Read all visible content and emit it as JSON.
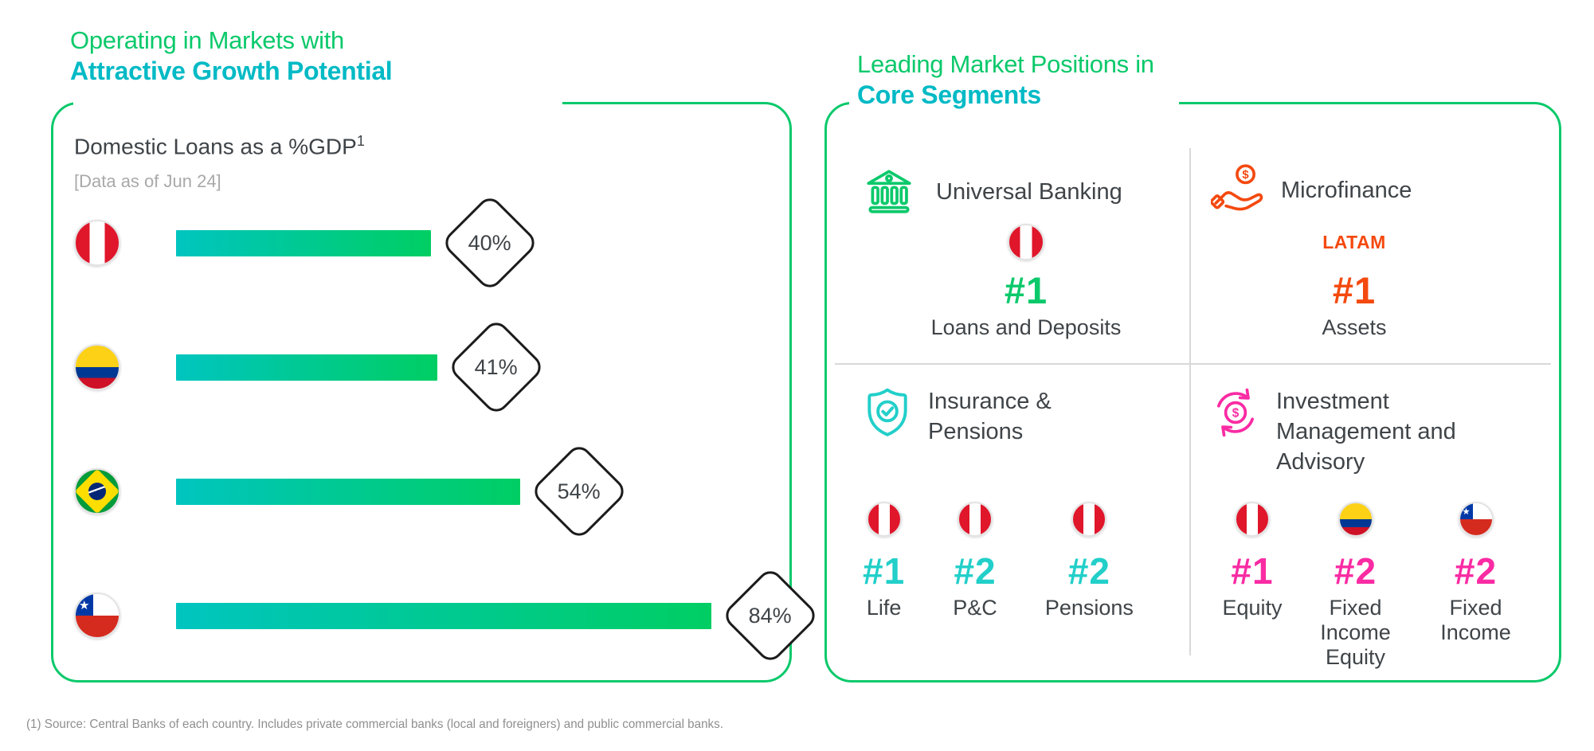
{
  "footnote": "(1) Source: Central Banks of each country. Includes private commercial banks (local and foreigners) and public commercial banks.",
  "colors": {
    "green": "#0BC96B",
    "teal": "#00BAC5",
    "turquoise": "#22CFC9",
    "orange": "#F4490F",
    "magenta": "#FA2BA3",
    "dark_text": "#3F4448",
    "note_gray": "#A9A9A9",
    "divider_gray": "#D9D9D9",
    "bar_gradient_start": "#00C5C0",
    "bar_gradient_end": "#00CE63"
  },
  "left_panel": {
    "title_line1": "Operating in Markets with",
    "title_line2": "Attractive Growth Potential",
    "heading_text": "Domestic Loans as a %GDP",
    "heading_sup": "1",
    "data_note": "[Data as of Jun 24]"
  },
  "chart_data": {
    "type": "bar",
    "orientation": "horizontal",
    "title": "Domestic Loans as a %GDP (1)",
    "note": "[Data as of Jun 24]",
    "categories": [
      "Peru",
      "Colombia",
      "Brazil",
      "Chile"
    ],
    "values": [
      40,
      41,
      54,
      84
    ],
    "unit": "%",
    "labels": [
      "40%",
      "41%",
      "54%",
      "84%"
    ],
    "flags": [
      "peru",
      "colombia",
      "brazil",
      "chile"
    ],
    "xlim": [
      0,
      100
    ],
    "grid": false,
    "legend": false
  },
  "right_panel": {
    "title_line1": "Leading Market Positions in",
    "title_line2": "Core Segments",
    "segments": [
      {
        "name": "Universal Banking",
        "title_lines": [
          "Universal Banking"
        ],
        "icon": "bank-icon",
        "accent": "#0BC96B",
        "rankings": [
          {
            "flag": "peru",
            "rank": "#1",
            "label": "Loans and Deposits"
          }
        ]
      },
      {
        "name": "Microfinance",
        "title_lines": [
          "Microfinance"
        ],
        "icon": "hand-coin-icon",
        "accent": "#F4490F",
        "rankings": [
          {
            "region": "LATAM",
            "rank": "#1",
            "label": "Assets"
          }
        ]
      },
      {
        "name": "Insurance & Pensions",
        "title_lines": [
          "Insurance &",
          "Pensions"
        ],
        "icon": "shield-check-icon",
        "accent": "#22CFC9",
        "rankings": [
          {
            "flag": "peru",
            "rank": "#1",
            "label": "Life"
          },
          {
            "flag": "peru",
            "rank": "#2",
            "label": "P&C"
          },
          {
            "flag": "peru",
            "rank": "#2",
            "label": "Pensions"
          }
        ]
      },
      {
        "name": "Investment Management and Advisory",
        "title_lines": [
          "Investment",
          "Management and",
          "Advisory"
        ],
        "icon": "cycle-dollar-icon",
        "accent": "#FA2BA3",
        "rankings": [
          {
            "flag": "peru",
            "rank": "#1",
            "label": "Equity"
          },
          {
            "flag": "colombia",
            "rank": "#2",
            "label": "Fixed Income Equity"
          },
          {
            "flag": "chile",
            "rank": "#2",
            "label": "Fixed Income"
          }
        ]
      }
    ]
  }
}
